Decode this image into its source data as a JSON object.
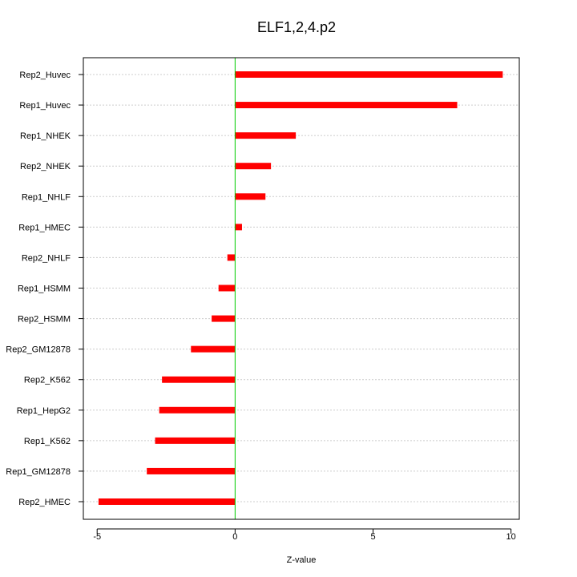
{
  "chart_data": {
    "type": "bar",
    "orientation": "horizontal",
    "title": "ELF1,2,4.p2",
    "xlabel": "Z-value",
    "ylabel": "",
    "xlim": [
      -5.5,
      10.3
    ],
    "xticks": [
      -5,
      0,
      5,
      10
    ],
    "grid": true,
    "categories": [
      "Rep2_Huvec",
      "Rep1_Huvec",
      "Rep1_NHEK",
      "Rep2_NHEK",
      "Rep1_NHLF",
      "Rep1_HMEC",
      "Rep2_NHLF",
      "Rep1_HSMM",
      "Rep2_HSMM",
      "Rep2_GM12878",
      "Rep2_K562",
      "Rep1_HepG2",
      "Rep1_K562",
      "Rep1_GM12878",
      "Rep2_HMEC"
    ],
    "values": [
      9.7,
      8.05,
      2.2,
      1.3,
      1.1,
      0.25,
      -0.28,
      -0.6,
      -0.85,
      -1.6,
      -2.65,
      -2.75,
      -2.9,
      -3.2,
      -4.95
    ],
    "colors": {
      "bar": "#ff0000",
      "zero_line": "#00cc00",
      "grid": "#cccccc",
      "axis": "#000000"
    }
  }
}
